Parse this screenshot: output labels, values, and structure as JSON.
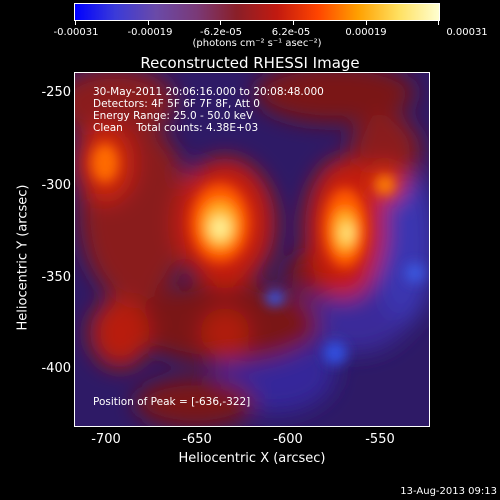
{
  "colorbar": {
    "tick_labels": [
      "-0.00031",
      "-0.00019",
      "-6.2e-05",
      "6.2e-05",
      "0.00019",
      "0.00031"
    ],
    "units": "(photons cm⁻² s⁻¹ asec⁻²)"
  },
  "title": "Reconstructed RHESSI Image",
  "info": {
    "time_range": "30-May-2011 20:06:16.000 to 20:08:48.000",
    "detectors": "Detectors: 4F 5F 6F 7F 8F, Att 0",
    "energy": "Energy Range: 25.0 - 50.0 keV",
    "clean": "Clean    Total counts: 4.38E+03",
    "peak": "Position of Peak = [-636,-322]"
  },
  "axes": {
    "xlabel": "Heliocentric X (arcsec)",
    "ylabel": "Heliocentric Y (arcsec)",
    "x_ticks": [
      "-700",
      "-650",
      "-600",
      "-550"
    ],
    "y_ticks": [
      "-250",
      "-300",
      "-350",
      "-400"
    ]
  },
  "timestamp": "13-Aug-2013 09:13",
  "colors": {
    "background": "#000000",
    "text": "#ffffff"
  }
}
